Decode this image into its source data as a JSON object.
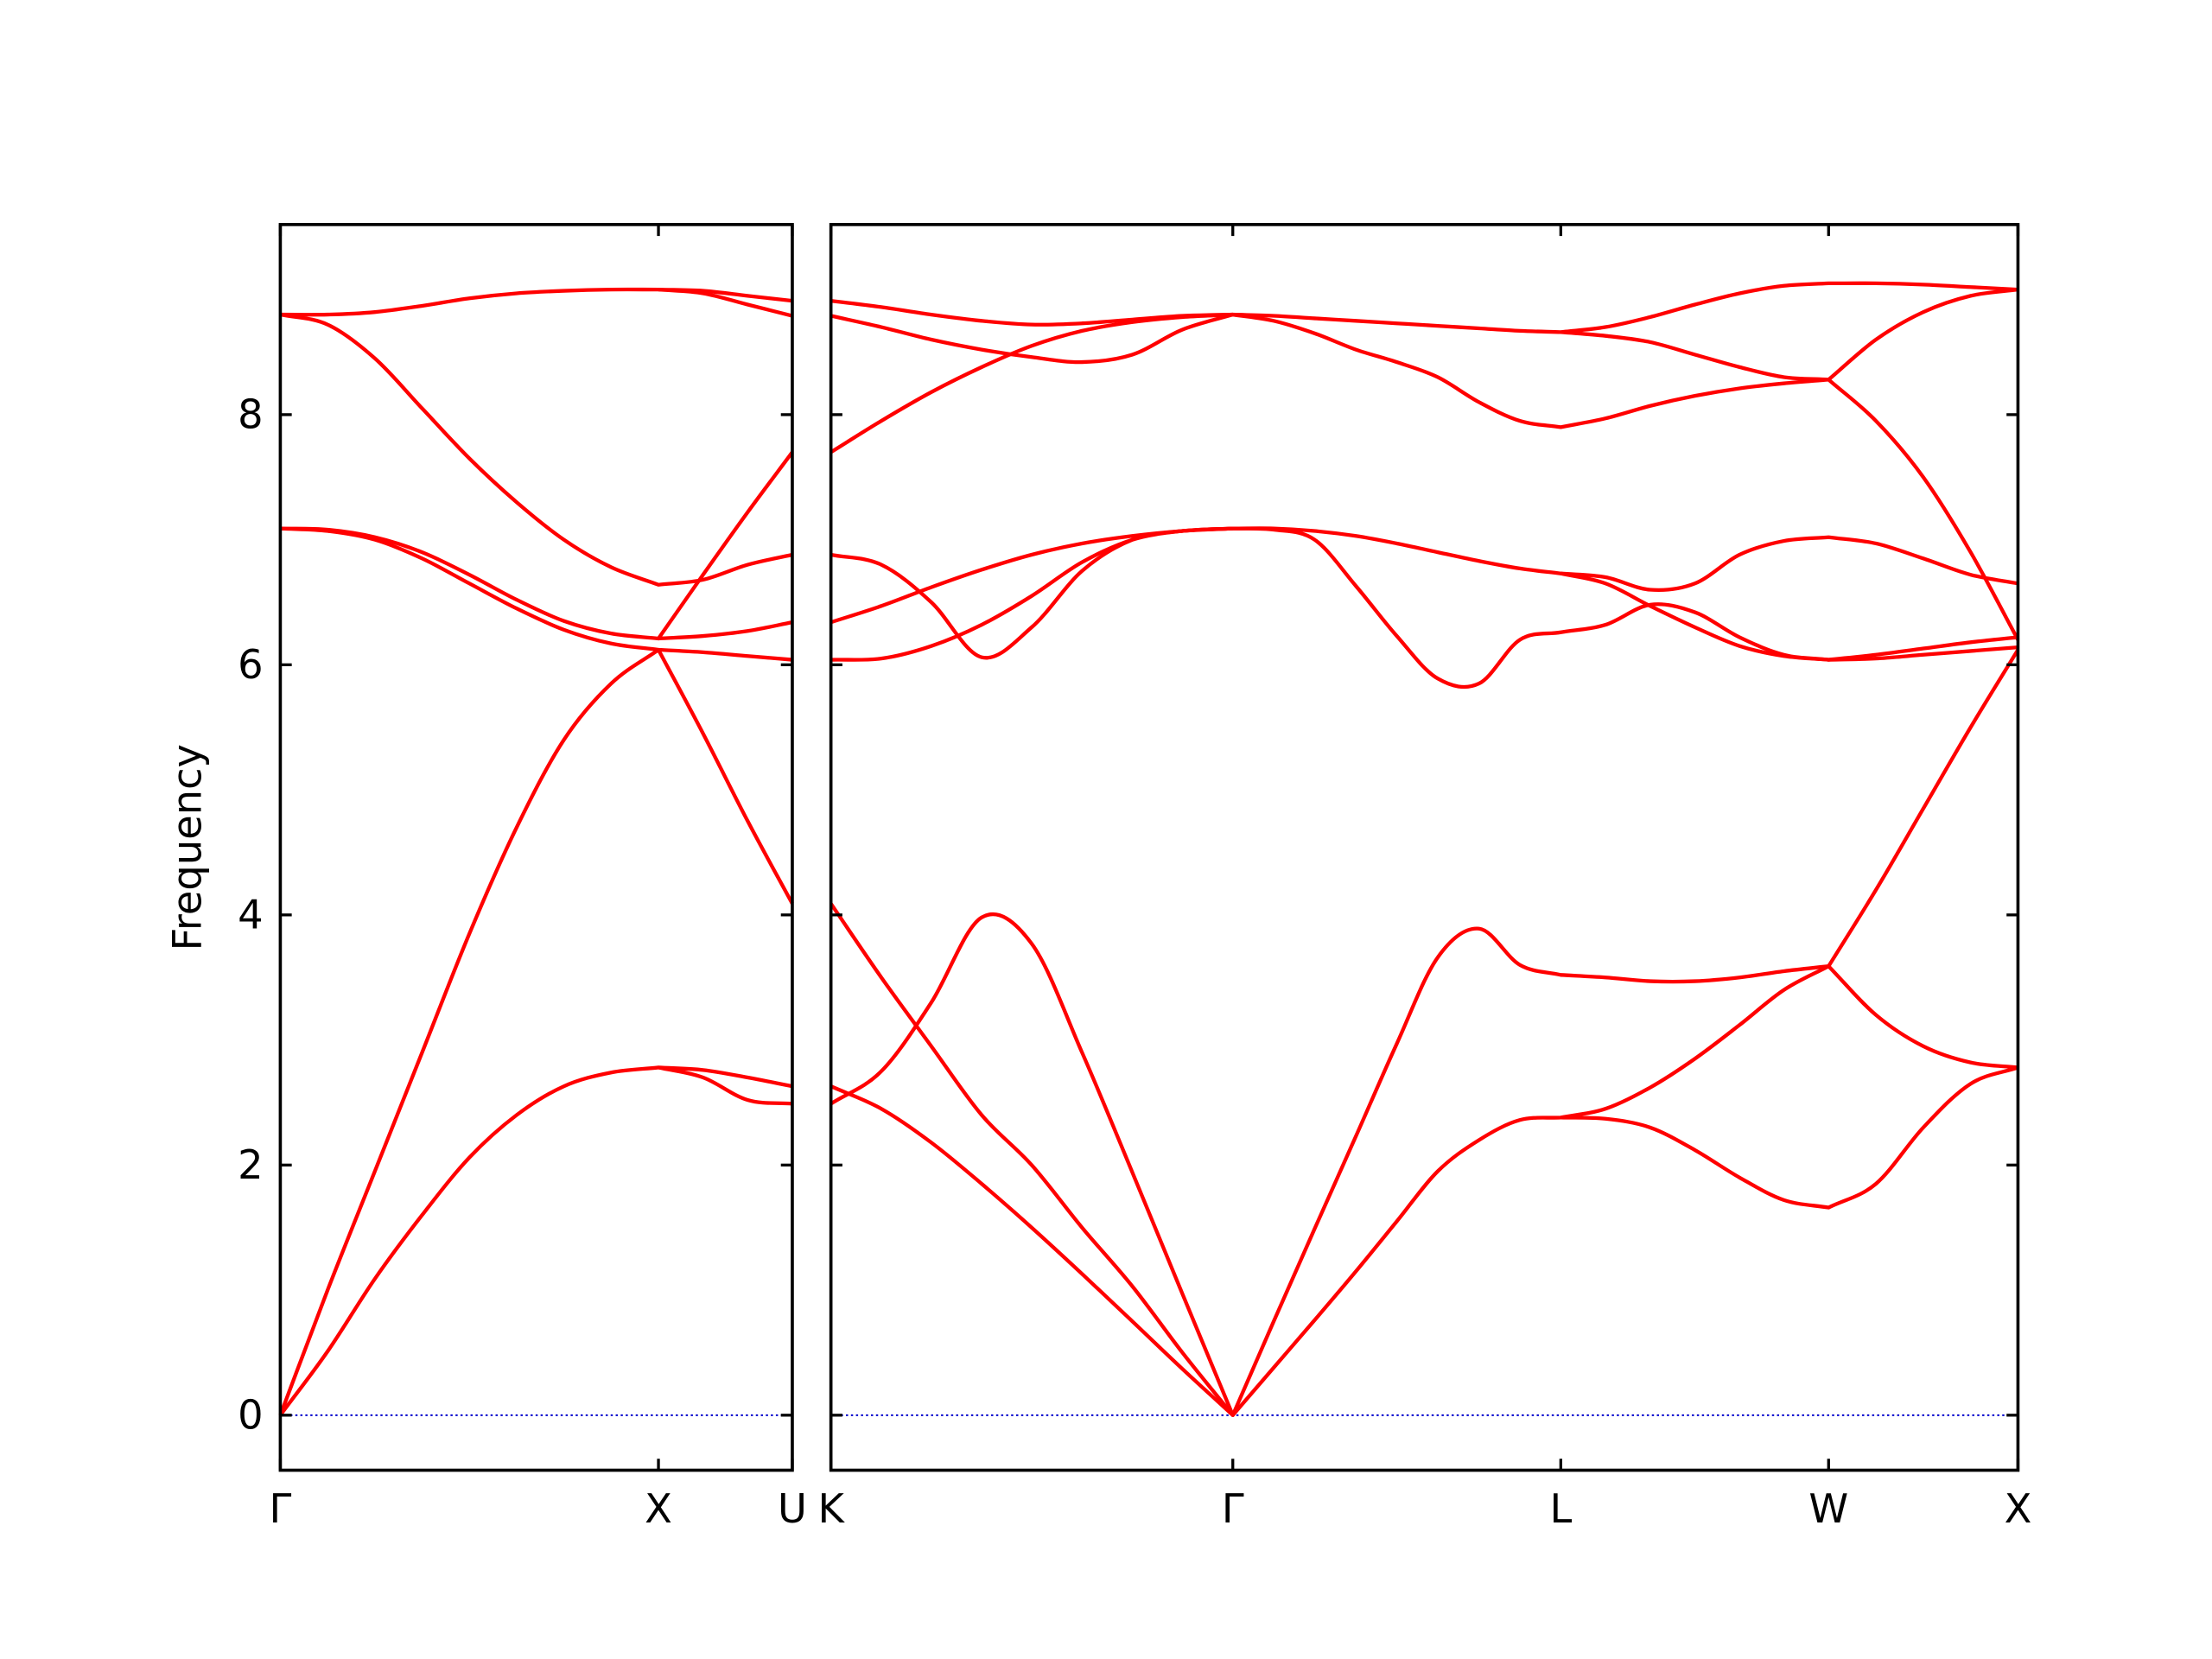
{
  "chart_data": [
    {
      "type": "line",
      "ylabel": "Frequency",
      "color": "#ff0000",
      "x": [
        0,
        0.125,
        0.25,
        0.375,
        0.5,
        0.625,
        0.75,
        0.875,
        1,
        1.118,
        1.236,
        1.354
      ],
      "xlim": [
        0,
        1.354
      ],
      "xticks": [
        {
          "value": 0,
          "label": "Γ"
        },
        {
          "value": 1,
          "label": "X"
        },
        {
          "value": 1.354,
          "label": "U"
        }
      ],
      "ylim": [
        -0.44,
        9.52
      ],
      "yticks": [
        0,
        2,
        4,
        6,
        8
      ],
      "ytick_labels": true,
      "hline": {
        "y": 0,
        "color": "#0000cc",
        "style": "dotted"
      },
      "series": [
        {
          "values": [
            8.8,
            8.8,
            8.82,
            8.87,
            8.93,
            8.97,
            8.99,
            9.0,
            9.0,
            8.99,
            8.95,
            8.91
          ]
        },
        {
          "values": [
            null,
            null,
            null,
            null,
            null,
            null,
            null,
            null,
            9.0,
            8.97,
            8.88,
            8.79
          ]
        },
        {
          "values": [
            8.8,
            8.72,
            8.45,
            8.05,
            7.65,
            7.3,
            7.0,
            6.78,
            6.64,
            6.68,
            6.8,
            6.88
          ]
        },
        {
          "values": [
            7.09,
            7.08,
            7.02,
            6.9,
            6.72,
            6.52,
            6.35,
            6.25,
            6.21,
            6.72,
            7.22,
            7.7
          ]
        },
        {
          "values": [
            null,
            null,
            null,
            null,
            null,
            null,
            null,
            null,
            6.21,
            6.23,
            6.27,
            6.34
          ]
        },
        {
          "values": [
            7.09,
            7.07,
            7.0,
            6.85,
            6.65,
            6.45,
            6.28,
            6.17,
            6.12,
            6.1,
            6.07,
            6.04
          ]
        },
        {
          "values": [
            0,
            1.0,
            1.95,
            2.9,
            3.85,
            4.7,
            5.4,
            5.85,
            6.12,
            5.45,
            4.75,
            4.09
          ]
        },
        {
          "values": [
            0,
            0.51,
            1.09,
            1.6,
            2.06,
            2.4,
            2.63,
            2.74,
            2.78,
            2.76,
            2.7,
            2.63
          ]
        },
        {
          "values": [
            null,
            null,
            null,
            null,
            null,
            null,
            null,
            null,
            2.78,
            2.7,
            2.52,
            2.49
          ]
        }
      ]
    },
    {
      "type": "line",
      "color": "#ff0000",
      "x": [
        1.354,
        1.487,
        1.619,
        1.752,
        1.884,
        2.017,
        2.15,
        2.282,
        2.415,
        2.523,
        2.631,
        2.74,
        2.848,
        2.956,
        3.065,
        3.173,
        3.281,
        3.399,
        3.517,
        3.635,
        3.753,
        3.87,
        3.988,
        4.113,
        4.238,
        4.363,
        4.488
      ],
      "xlim": [
        1.354,
        4.488
      ],
      "xticks": [
        {
          "value": 1.354,
          "label": "K"
        },
        {
          "value": 2.415,
          "label": "Γ"
        },
        {
          "value": 3.281,
          "label": "L"
        },
        {
          "value": 3.988,
          "label": "W"
        },
        {
          "value": 4.488,
          "label": "X"
        }
      ],
      "ylim": [
        -0.44,
        9.52
      ],
      "yticks": [
        0,
        2,
        4,
        6,
        8
      ],
      "ytick_labels": false,
      "hline": {
        "y": 0,
        "color": "#0000cc",
        "style": "dotted"
      },
      "series": [
        {
          "values": [
            8.91,
            8.86,
            8.8,
            8.75,
            8.72,
            8.73,
            8.76,
            8.79,
            8.8,
            8.79,
            8.77,
            8.75,
            8.73,
            8.71,
            8.69,
            8.67,
            8.66,
            8.7,
            8.78,
            8.88,
            8.97,
            9.03,
            9.05,
            9.05,
            9.04,
            9.02,
            9.0
          ]
        },
        {
          "values": [
            8.79,
            8.7,
            8.6,
            8.52,
            8.46,
            8.42,
            8.48,
            8.68,
            8.8,
            8.75,
            8.65,
            8.52,
            8.42,
            8.3,
            8.1,
            7.95,
            7.9,
            7.97,
            8.07,
            8.15,
            8.21,
            8.25,
            8.28,
            8.6,
            8.82,
            8.95,
            9.0
          ]
        },
        {
          "values": [
            7.7,
            7.95,
            8.18,
            8.38,
            8.55,
            8.67,
            8.74,
            8.78,
            8.8,
            null,
            null,
            null,
            null,
            null,
            null,
            null,
            8.66,
            8.63,
            8.58,
            8.48,
            8.38,
            8.3,
            8.28,
            7.95,
            7.5,
            6.9,
            6.2
          ]
        },
        {
          "values": [
            6.88,
            6.8,
            6.5,
            6.06,
            6.3,
            6.75,
            7.0,
            7.07,
            7.09,
            7.09,
            7.07,
            7.03,
            6.97,
            6.9,
            6.83,
            6.77,
            6.73,
            6.7,
            6.6,
            6.65,
            6.88,
            6.99,
            7.02,
            6.97,
            6.85,
            6.72,
            6.65
          ]
        },
        {
          "values": [
            6.34,
            6.47,
            6.62,
            6.76,
            6.88,
            6.97,
            7.03,
            7.07,
            7.09,
            7.08,
            7.0,
            6.63,
            6.23,
            5.89,
            5.85,
            6.2,
            6.26,
            6.32,
            6.48,
            6.42,
            6.22,
            6.08,
            6.04,
            6.08,
            6.13,
            6.18,
            6.22
          ]
        },
        {
          "values": [
            6.04,
            6.05,
            6.15,
            6.32,
            6.55,
            6.82,
            7.0,
            7.07,
            7.09,
            null,
            null,
            null,
            null,
            null,
            null,
            null,
            6.73,
            6.65,
            6.47,
            6.3,
            6.15,
            6.07,
            6.04,
            6.05,
            6.08,
            6.11,
            6.14
          ]
        },
        {
          "values": [
            4.09,
            3.5,
            2.95,
            2.4,
            2.0,
            1.5,
            1.03,
            0.5,
            0,
            0.75,
            1.49,
            2.23,
            2.97,
            3.66,
            3.89,
            3.6,
            3.52,
            3.5,
            3.47,
            3.47,
            3.5,
            3.55,
            3.59,
            4.2,
            4.85,
            5.5,
            6.12
          ]
        },
        {
          "values": [
            2.49,
            2.75,
            3.3,
            3.98,
            3.77,
            2.9,
            1.94,
            0.97,
            0,
            0.38,
            0.76,
            1.15,
            1.55,
            1.95,
            2.2,
            2.36,
            2.38,
            2.45,
            2.62,
            2.85,
            3.12,
            3.4,
            3.59,
            3.2,
            2.95,
            2.82,
            2.78
          ]
        },
        {
          "values": [
            2.63,
            2.45,
            2.18,
            1.85,
            1.5,
            1.13,
            0.75,
            0.37,
            0,
            null,
            null,
            null,
            null,
            null,
            null,
            null,
            2.38,
            2.37,
            2.3,
            2.12,
            1.9,
            1.72,
            1.66,
            1.85,
            2.3,
            2.65,
            2.78
          ]
        }
      ]
    }
  ]
}
